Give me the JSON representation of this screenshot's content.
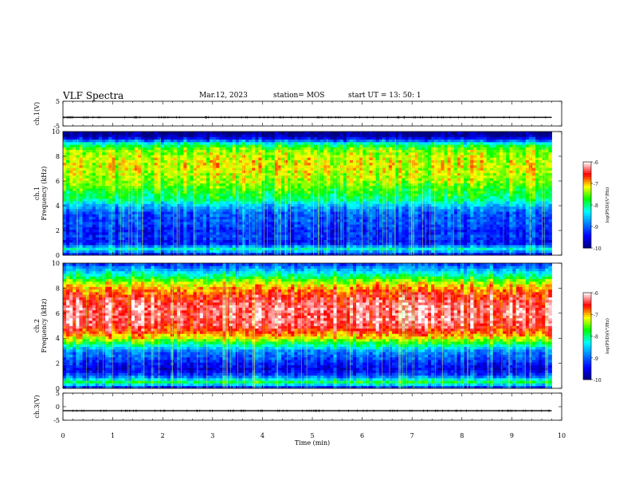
{
  "header": {
    "title": "VLF Spectra",
    "date": "Mar.12, 2023",
    "station": "station= MOS",
    "start": "start  UT =   13: 50: 1"
  },
  "chart_data": [
    {
      "type": "line",
      "panel": "ch1-waveform",
      "ylabel": "ch.1(V)",
      "ylim": [
        -5,
        5
      ],
      "yticks": [
        5,
        -5
      ],
      "x": [
        0,
        1,
        2,
        3,
        4,
        5,
        6,
        7,
        8,
        9,
        9.8
      ],
      "series": [
        {
          "values": [
            -1.5,
            -1.5,
            -1.5,
            -1.5,
            -1.5,
            -1.5,
            -1.5,
            -1.5,
            -1.5,
            -1.5,
            -1.5
          ]
        }
      ]
    },
    {
      "type": "heatmap",
      "panel": "ch1-spectrogram",
      "ylabel": "ch.1\nFrequency (kHz)",
      "ylim": [
        0,
        10
      ],
      "yticks": [
        "0",
        "2",
        "4",
        "6",
        "8",
        "10"
      ],
      "xlim": [
        0,
        10
      ],
      "data_end_min": 9.8,
      "profile_freq_khz": [
        0,
        0.5,
        1,
        1.5,
        2,
        2.5,
        3,
        3.5,
        4,
        4.5,
        5,
        5.5,
        6,
        6.5,
        7,
        7.5,
        8,
        8.5,
        9,
        9.3,
        9.6,
        10
      ],
      "profile_log_psd": [
        -9.6,
        -8.2,
        -9.4,
        -9.2,
        -9.3,
        -9.1,
        -9.1,
        -9.0,
        -8.6,
        -8.0,
        -7.8,
        -7.6,
        -7.4,
        -7.3,
        -7.2,
        -7.2,
        -7.3,
        -7.4,
        -8.0,
        -9.0,
        -9.8,
        -10
      ],
      "colorbar": {
        "label": "log(PSD)(V²/Hz)",
        "range": [
          -10,
          -6
        ],
        "ticks": [
          "-6",
          "-7",
          "-8",
          "-9",
          "-10"
        ]
      }
    },
    {
      "type": "heatmap",
      "panel": "ch2-spectrogram",
      "ylabel": "ch.2\nFrequency (kHz)",
      "ylim": [
        0,
        10
      ],
      "yticks": [
        "0",
        "2",
        "4",
        "6",
        "8",
        "10"
      ],
      "xlim": [
        0,
        10
      ],
      "data_end_min": 9.8,
      "profile_freq_khz": [
        0,
        0.5,
        1,
        1.5,
        2,
        2.5,
        3,
        3.5,
        4,
        4.5,
        5,
        5.5,
        6,
        6.5,
        7,
        7.5,
        8,
        8.5,
        9,
        9.5,
        10
      ],
      "profile_log_psd": [
        -9.5,
        -7.8,
        -9.0,
        -9.5,
        -9.3,
        -9.0,
        -8.8,
        -8.0,
        -7.2,
        -6.7,
        -6.4,
        -6.3,
        -6.3,
        -6.3,
        -6.4,
        -6.6,
        -6.9,
        -7.3,
        -8.0,
        -8.6,
        -9.2
      ],
      "colorbar": {
        "label": "log(PSD)(V²/Hz)",
        "range": [
          -10,
          -6
        ],
        "ticks": [
          "-6",
          "-7",
          "-8",
          "-9",
          "-10"
        ]
      }
    },
    {
      "type": "line",
      "panel": "ch3-waveform",
      "ylabel": "ch.3(V)",
      "ylim": [
        -5,
        5
      ],
      "yticks": [
        5,
        0,
        -5
      ],
      "x": [
        0,
        1,
        2,
        3,
        4,
        5,
        6,
        7,
        8,
        9,
        9.8
      ],
      "series": [
        {
          "values": [
            -1.5,
            -1.5,
            -1.5,
            -1.5,
            -1.5,
            -1.5,
            -1.5,
            -1.5,
            -1.5,
            -1.5,
            -1.5
          ]
        }
      ]
    }
  ],
  "xaxis": {
    "label": "Time  (min)",
    "ticks": [
      "0",
      "1",
      "2",
      "3",
      "4",
      "5",
      "6",
      "7",
      "8",
      "9",
      "10"
    ],
    "xlim": [
      0,
      10
    ]
  },
  "colors": {
    "colormap": [
      "#000080",
      "#0000ff",
      "#0080ff",
      "#00ffff",
      "#00ff00",
      "#ffff00",
      "#ff0000",
      "#ffffff"
    ]
  }
}
